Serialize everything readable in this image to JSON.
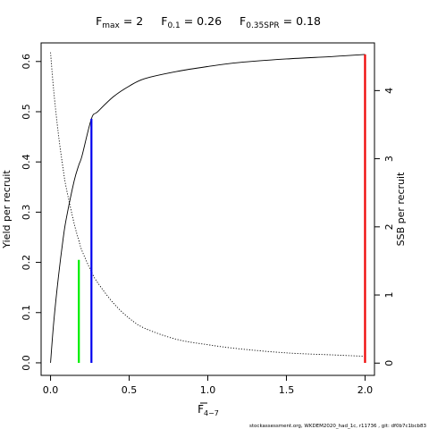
{
  "chart_data": {
    "type": "line",
    "title_parts": [
      {
        "main": "F",
        "sub": "max",
        "value": " = 2"
      },
      {
        "main": "F",
        "sub": "0.1",
        "value": " = 0.26"
      },
      {
        "main": "F",
        "sub": "0.35SPR",
        "value": " = 0.18"
      }
    ],
    "xlabel": {
      "main": "F",
      "sub": "4−7"
    },
    "ylabel_left": "Yield per recruit",
    "ylabel_right": "SSB per recruit",
    "footer": "stockassessment.org, WKDEM2020_had_1c, r11736 , git: df0b7c1bcb83",
    "xlim": [
      -0.06,
      2.06
    ],
    "ylim_left": [
      -0.025,
      0.637
    ],
    "ylim_right": [
      -0.18,
      4.7
    ],
    "x_ticks": [
      0,
      0.5,
      1.0,
      1.5,
      2.0
    ],
    "x_tick_labels": [
      "0.0",
      "0.5",
      "1.0",
      "1.5",
      "2.0"
    ],
    "y_left_ticks": [
      0,
      0.1,
      0.2,
      0.3,
      0.4,
      0.5,
      0.6
    ],
    "y_left_tick_labels": [
      "0.0",
      "0.1",
      "0.2",
      "0.3",
      "0.4",
      "0.5",
      "0.6"
    ],
    "y_right_ticks": [
      0,
      1,
      2,
      3,
      4
    ],
    "y_right_tick_labels": [
      "0",
      "1",
      "2",
      "3",
      "4"
    ],
    "series": [
      {
        "axis": "left",
        "style": "solid",
        "x": [
          0,
          0.02,
          0.05,
          0.08,
          0.1,
          0.15,
          0.18,
          0.2,
          0.26,
          0.3,
          0.4,
          0.5,
          0.6,
          0.8,
          1.0,
          1.2,
          1.5,
          1.8,
          2.0
        ],
        "y": [
          0,
          0.08,
          0.171,
          0.247,
          0.287,
          0.362,
          0.394,
          0.412,
          0.486,
          0.5,
          0.53,
          0.551,
          0.566,
          0.58,
          0.59,
          0.598,
          0.605,
          0.61,
          0.614
        ]
      },
      {
        "axis": "right",
        "style": "dotted",
        "x": [
          0,
          0.02,
          0.05,
          0.08,
          0.1,
          0.15,
          0.18,
          0.2,
          0.26,
          0.3,
          0.4,
          0.5,
          0.6,
          0.8,
          1.0,
          1.2,
          1.5,
          1.8,
          2.0
        ],
        "y": [
          4.56,
          4.0,
          3.36,
          2.85,
          2.57,
          2.05,
          1.8,
          1.65,
          1.34,
          1.18,
          0.88,
          0.66,
          0.51,
          0.35,
          0.27,
          0.21,
          0.15,
          0.12,
          0.1
        ]
      }
    ],
    "reference_lines": [
      {
        "name": "F0.35SPR",
        "x": 0.18,
        "y_top": 0.205,
        "color": "#00ee00"
      },
      {
        "name": "F0.1",
        "x": 0.26,
        "y_top": 0.486,
        "color": "#0000ee"
      },
      {
        "name": "Fmax",
        "x": 2.0,
        "y_top": 0.614,
        "color": "#ee0000"
      }
    ]
  }
}
